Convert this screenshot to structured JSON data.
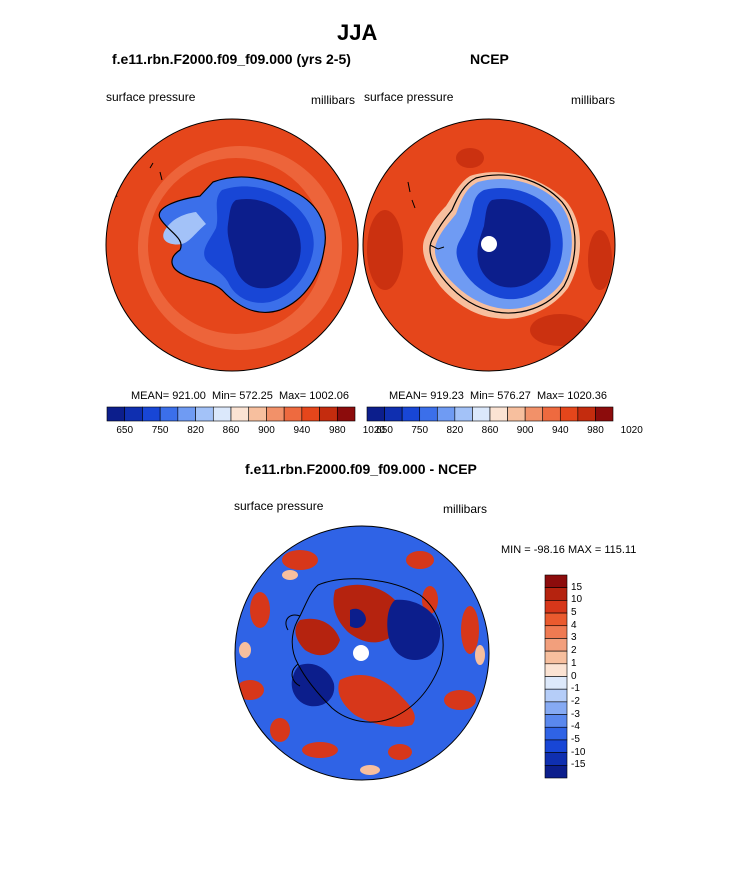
{
  "page": {
    "title": "JJA"
  },
  "panels": [
    {
      "id": "model",
      "title": "f.e11.rbn.F2000.f09_f09.000 (yrs 2-5)",
      "left_label": "surface pressure",
      "right_label": "millibars",
      "stats": {
        "mean": "MEAN= 921.00",
        "min": "Min= 572.25",
        "max": "Max= 1002.06"
      }
    },
    {
      "id": "obs",
      "title": "NCEP",
      "left_label": "surface pressure",
      "right_label": "millibars",
      "stats": {
        "mean": "MEAN= 919.23",
        "min": "Min= 576.27",
        "max": "Max= 1020.36"
      }
    },
    {
      "id": "diff",
      "title": "f.e11.rbn.F2000.f09_f09.000 - NCEP",
      "left_label": "surface pressure",
      "right_label": "millibars",
      "minmax": "MIN = -98.16 MAX = 115.11"
    }
  ],
  "colorbars": {
    "absolute": {
      "colors": [
        "#0c1e8c",
        "#0f2fb0",
        "#1846d6",
        "#3b6fea",
        "#6f9bf3",
        "#a3c2f8",
        "#dbe8fb",
        "#fbe3d3",
        "#f7bf9e",
        "#f29169",
        "#ee6a3f",
        "#e5461b",
        "#c42c0e",
        "#8c0c0c"
      ],
      "tick_labels": [
        "650",
        "750",
        "820",
        "860",
        "900",
        "940",
        "980",
        "1020"
      ]
    },
    "difference": {
      "colors": [
        "#0c1e8c",
        "#0f2fb0",
        "#1846d6",
        "#2f63e6",
        "#5a88ee",
        "#86aaf3",
        "#b5cdf8",
        "#dde9fb",
        "#fbe3d3",
        "#f7bf9e",
        "#f29f7c",
        "#ef7a52",
        "#ea5a2e",
        "#d7371a",
        "#b5230f",
        "#8c0c0c"
      ],
      "tick_labels": [
        "15",
        "10",
        "5",
        "4",
        "3",
        "2",
        "1",
        "0",
        "-1",
        "-2",
        "-3",
        "-4",
        "-5",
        "-10",
        "-15"
      ]
    }
  },
  "chart_data": [
    {
      "type": "heatmap",
      "title": "f.e11.rbn.F2000.f09_f09.000 (yrs 2-5)",
      "variable": "surface pressure",
      "units": "millibars",
      "projection": "south polar stereographic",
      "levels": [
        650,
        700,
        750,
        800,
        820,
        840,
        860,
        880,
        900,
        920,
        940,
        960,
        980,
        1000,
        1020
      ],
      "tick_labels": [
        650,
        750,
        820,
        860,
        900,
        940,
        980,
        1020
      ],
      "mean": 921.0,
      "min": 572.25,
      "max": 1002.06
    },
    {
      "type": "heatmap",
      "title": "NCEP",
      "variable": "surface pressure",
      "units": "millibars",
      "projection": "south polar stereographic",
      "levels": [
        650,
        700,
        750,
        800,
        820,
        840,
        860,
        880,
        900,
        920,
        940,
        960,
        980,
        1000,
        1020
      ],
      "tick_labels": [
        650,
        750,
        820,
        860,
        900,
        940,
        980,
        1020
      ],
      "mean": 919.23,
      "min": 576.27,
      "max": 1020.36
    },
    {
      "type": "heatmap",
      "title": "f.e11.rbn.F2000.f09_f09.000 - NCEP",
      "variable": "surface pressure",
      "units": "millibars",
      "projection": "south polar stereographic",
      "levels": [
        -15,
        -10,
        -5,
        -4,
        -3,
        -2,
        -1,
        0,
        1,
        2,
        3,
        4,
        5,
        10,
        15
      ],
      "min": -98.16,
      "max": 115.11
    }
  ]
}
